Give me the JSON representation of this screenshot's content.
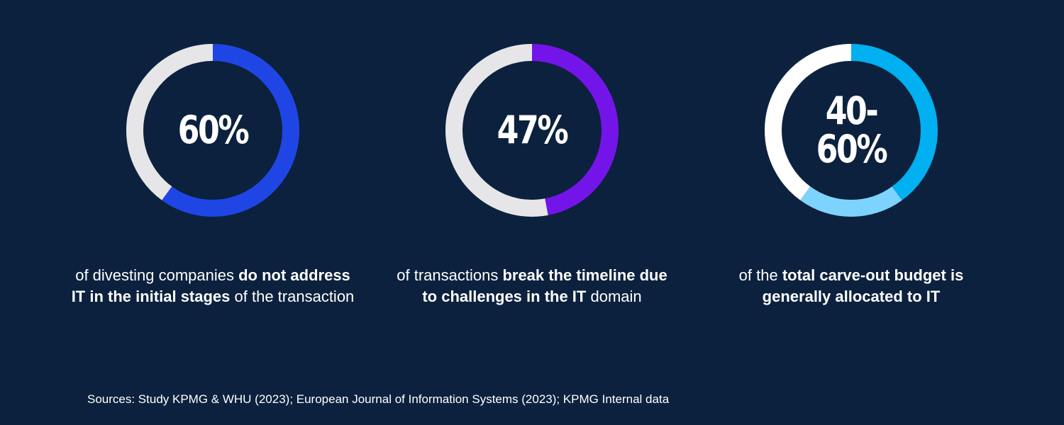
{
  "chart_data": [
    {
      "type": "pie",
      "value_label_lines": [
        "60%"
      ],
      "segments": [
        {
          "value": 60,
          "color": "#1f46e5"
        },
        {
          "value": 40,
          "color": "#e6e6e8"
        }
      ],
      "caption_parts": [
        {
          "text": "of divesting companies ",
          "bold": false
        },
        {
          "text": "do not address IT in the initial stages",
          "bold": true
        },
        {
          "text": " of the transaction",
          "bold": false
        }
      ]
    },
    {
      "type": "pie",
      "value_label_lines": [
        "47%"
      ],
      "segments": [
        {
          "value": 47,
          "color": "#7315e8"
        },
        {
          "value": 53,
          "color": "#e6e6e8"
        }
      ],
      "caption_parts": [
        {
          "text": "of transactions ",
          "bold": false
        },
        {
          "text": "break the timeline due to challenges in the IT",
          "bold": true
        },
        {
          "text": " domain",
          "bold": false
        }
      ]
    },
    {
      "type": "pie",
      "value_label_lines": [
        "40-",
        "60%"
      ],
      "segments": [
        {
          "value": 40,
          "color": "#00b0f0"
        },
        {
          "value": 20,
          "color": "#7dd3fb"
        },
        {
          "value": 40,
          "color": "#ffffff"
        }
      ],
      "caption_parts": [
        {
          "text": "of the ",
          "bold": false
        },
        {
          "text": "total carve-out budget is generally allocated to IT",
          "bold": true
        }
      ]
    }
  ],
  "footer": {
    "sources": "Sources: Study KPMG & WHU (2023); European Journal of Information Systems (2023); KPMG Internal data"
  }
}
